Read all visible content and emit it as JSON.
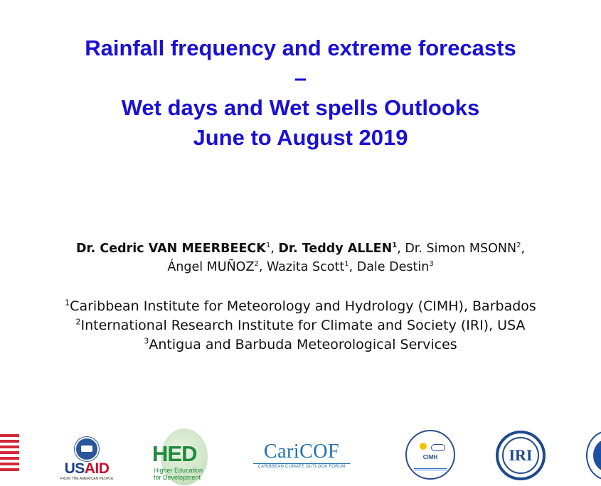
{
  "title": {
    "line1": "Rainfall frequency and extreme forecasts",
    "line2": "–",
    "line3": "Wet days and Wet spells Outlooks",
    "line4": "June to August 2019"
  },
  "authors": {
    "a1_name": "Dr. Cedric VAN MEERBEECK",
    "a1_sup": "1",
    "a2_name": "Dr. Teddy ALLEN",
    "a2_sup": "1",
    "a3_name": "Dr. Simon MSONN",
    "a3_sup": "2",
    "a4_name": "Ángel MUÑOZ",
    "a4_sup": "2",
    "a5_name": "Wazita Scott",
    "a5_sup": "1",
    "a6_name": "Dale Destin",
    "a6_sup": "3"
  },
  "affiliations": [
    {
      "sup": "1",
      "text": "Caribbean Institute for Meteorology and Hydrology (CIMH), Barbados"
    },
    {
      "sup": "2",
      "text": "International Research Institute for Climate and Society (IRI), USA"
    },
    {
      "sup": "3",
      "text": "Antigua and Barbuda Meteorological Services"
    }
  ],
  "logos": {
    "usaid": {
      "u": "US",
      "a": "AID",
      "tagline": "FROM THE AMERICAN PEOPLE"
    },
    "hed": {
      "word": "HED",
      "tagline": "Higher Education for Development"
    },
    "caricof": {
      "word": "CariCOF",
      "tagline": "CARIBBEAN CLIMATE OUTLOOK FORUM"
    },
    "cimh": {
      "word": "CIMH"
    },
    "iri": {
      "word": "IRI"
    }
  },
  "colors": {
    "title": "#1a10d6",
    "flag_red": "#d3283a",
    "usaid_blue": "#1b3f8f",
    "hed_green": "#1f8a3c",
    "caricof_blue": "#1f6fb5",
    "iri_blue": "#1e4a8a"
  }
}
